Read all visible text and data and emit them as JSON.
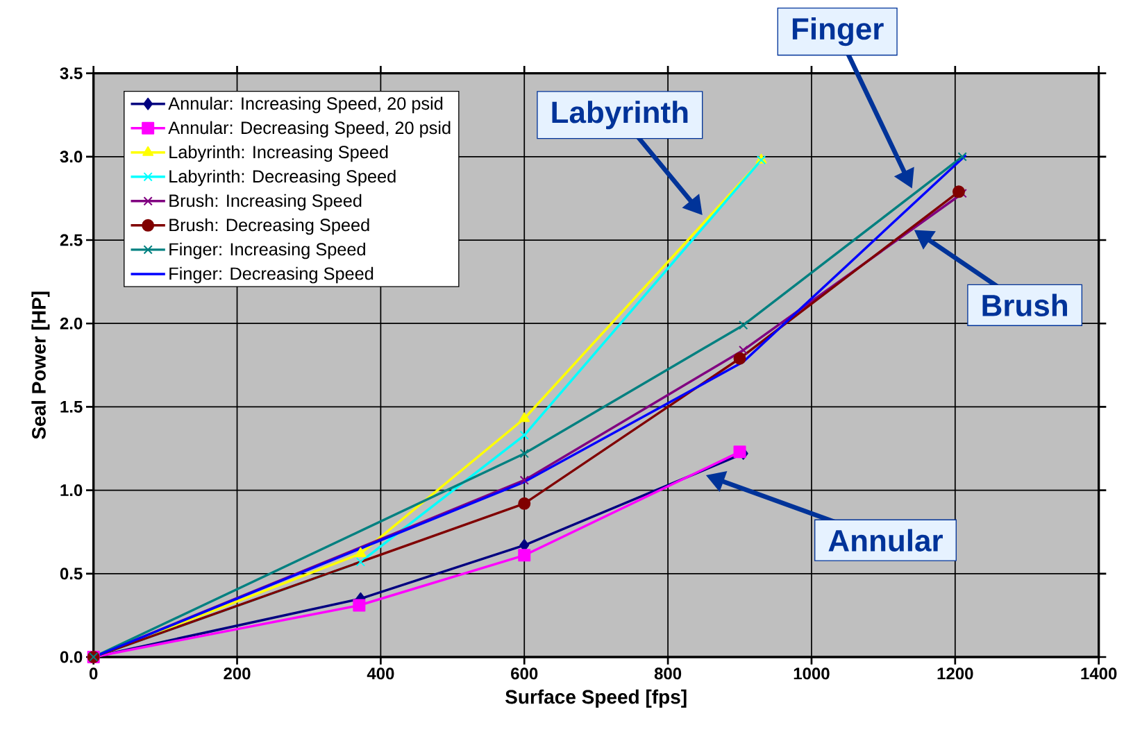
{
  "chart_data": {
    "type": "line",
    "xlabel": "Surface Speed [fps]",
    "ylabel": "Seal Power [HP]",
    "xlim": [
      0,
      1400
    ],
    "xticks": [
      0,
      200,
      400,
      600,
      800,
      1000,
      1200,
      1400
    ],
    "ylim": [
      0,
      3.5
    ],
    "yticks": [
      {
        "value": 0,
        "label": "0.0"
      },
      {
        "value": 0.5,
        "label": "0.5"
      },
      {
        "value": 1,
        "label": "1.0"
      },
      {
        "value": 1.5,
        "label": "1.5"
      },
      {
        "value": 2,
        "label": "2.0"
      },
      {
        "value": 2.5,
        "label": "2.5"
      },
      {
        "value": 3,
        "label": "3.0"
      },
      {
        "value": 3.5,
        "label": "3.5"
      }
    ],
    "grid": true,
    "legend": "top left",
    "line_style": "solid",
    "series": [
      {
        "name": "Annular: Increasing Speed, 20 psid",
        "color": "#000080",
        "marker": "diamond",
        "x": [
          0,
          372,
          600,
          905
        ],
        "values": [
          0,
          0.35,
          0.67,
          1.22
        ]
      },
      {
        "name": "Annular: Decreasing Speed, 20 psid",
        "color": "#ff00ff",
        "marker": "square",
        "x": [
          0,
          370,
          600,
          900
        ],
        "values": [
          0,
          0.31,
          0.61,
          1.23
        ]
      },
      {
        "name": "Labyrinth: Increasing Speed",
        "color": "#ffff00",
        "marker": "triangle",
        "x": [
          0,
          372,
          600,
          930
        ],
        "values": [
          0,
          0.62,
          1.43,
          2.98
        ]
      },
      {
        "name": "Labyrinth: Decreasing Speed",
        "color": "#00ffff",
        "marker": "cross",
        "x": [
          0,
          372,
          600,
          930
        ],
        "values": [
          0,
          0.57,
          1.33,
          2.98
        ]
      },
      {
        "name": "Brush: Increasing Speed",
        "color": "#800080",
        "marker": "cross",
        "x": [
          0,
          600,
          905,
          1210
        ],
        "values": [
          0,
          1.06,
          1.84,
          2.78
        ]
      },
      {
        "name": "Brush: Decreasing Speed",
        "color": "#800000",
        "marker": "circle",
        "x": [
          0,
          600,
          900,
          1205
        ],
        "values": [
          0,
          0.92,
          1.79,
          2.79
        ]
      },
      {
        "name": "Finger: Increasing Speed",
        "color": "#008080",
        "marker": "cross",
        "x": [
          0,
          600,
          905,
          1210
        ],
        "values": [
          0,
          1.22,
          1.99,
          3.0
        ]
      },
      {
        "name": "Finger: Decreasing Speed",
        "color": "#0000ff",
        "marker": "none",
        "x": [
          0,
          600,
          905,
          1215
        ],
        "values": [
          0,
          1.05,
          1.77,
          3.01
        ]
      }
    ],
    "annotations": [
      "Labyrinth",
      "Finger",
      "Brush",
      "Annular"
    ]
  }
}
